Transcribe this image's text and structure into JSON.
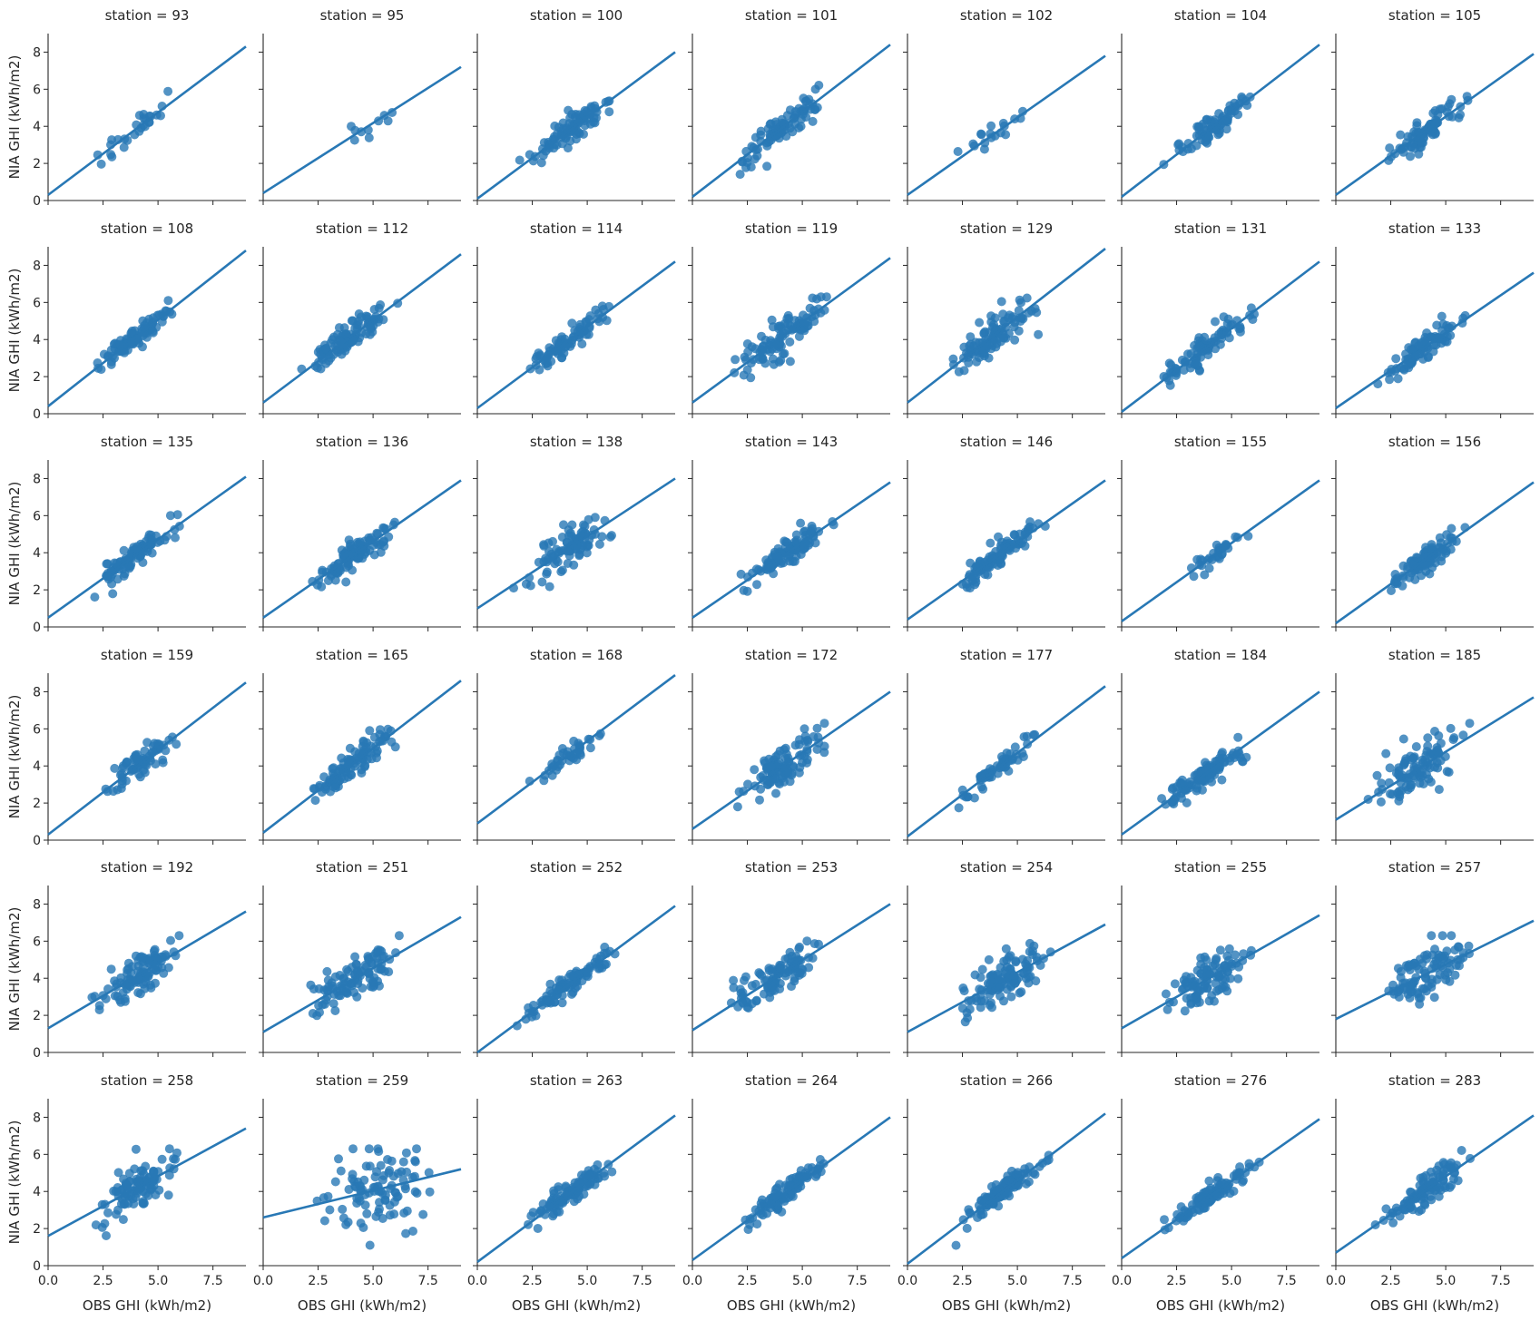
{
  "figure": {
    "type": "scatter",
    "xlabel": "OBS GHI (kWh/m2)",
    "ylabel": "NIA GHI (kWh/m2)",
    "xlim": [
      0,
      9
    ],
    "ylim": [
      0,
      9
    ],
    "xticks": [
      "0.0",
      "2.5",
      "5.0",
      "7.5"
    ],
    "yticks": [
      "0",
      "2",
      "4",
      "6",
      "8"
    ],
    "point_color": "#2878b5",
    "line_color": "#2878b5",
    "rows": 6,
    "cols": 7
  },
  "chart_data": [
    {
      "title": "station = 93",
      "reg": {
        "x": [
          0,
          9
        ],
        "y": [
          0.3,
          8.3
        ]
      },
      "n": 28,
      "sx": [
        1.7,
        6.6
      ],
      "noise": 0.35
    },
    {
      "title": "station = 95",
      "reg": {
        "x": [
          0,
          9
        ],
        "y": [
          0.4,
          7.2
        ]
      },
      "n": 10,
      "sx": [
        2.5,
        6.5
      ],
      "noise": 0.25
    },
    {
      "title": "station = 100",
      "reg": {
        "x": [
          0,
          9
        ],
        "y": [
          0.1,
          8.0
        ]
      },
      "n": 90,
      "sx": [
        1.8,
        6.6
      ],
      "noise": 0.35
    },
    {
      "title": "station = 101",
      "reg": {
        "x": [
          0,
          9
        ],
        "y": [
          0.2,
          8.4
        ]
      },
      "n": 90,
      "sx": [
        1.4,
        6.6
      ],
      "noise": 0.4
    },
    {
      "title": "station = 102",
      "reg": {
        "x": [
          0,
          9
        ],
        "y": [
          0.3,
          7.8
        ]
      },
      "n": 18,
      "sx": [
        1.6,
        6.6
      ],
      "noise": 0.2
    },
    {
      "title": "station = 104",
      "reg": {
        "x": [
          0,
          9
        ],
        "y": [
          0.2,
          8.4
        ]
      },
      "n": 80,
      "sx": [
        1.5,
        6.5
      ],
      "noise": 0.35
    },
    {
      "title": "station = 105",
      "reg": {
        "x": [
          0,
          9
        ],
        "y": [
          0.3,
          7.9
        ]
      },
      "n": 80,
      "sx": [
        1.8,
        6.5
      ],
      "noise": 0.35
    },
    {
      "title": "station = 108",
      "reg": {
        "x": [
          0,
          9
        ],
        "y": [
          0.4,
          8.8
        ]
      },
      "n": 90,
      "sx": [
        1.4,
        6.6
      ],
      "noise": 0.3
    },
    {
      "title": "station = 112",
      "reg": {
        "x": [
          0,
          9
        ],
        "y": [
          0.6,
          8.6
        ]
      },
      "n": 100,
      "sx": [
        1.4,
        6.5
      ],
      "noise": 0.4
    },
    {
      "title": "station = 114",
      "reg": {
        "x": [
          0,
          9
        ],
        "y": [
          0.3,
          8.2
        ]
      },
      "n": 80,
      "sx": [
        1.6,
        6.5
      ],
      "noise": 0.3
    },
    {
      "title": "station = 119",
      "reg": {
        "x": [
          0,
          9
        ],
        "y": [
          0.6,
          8.4
        ]
      },
      "n": 100,
      "sx": [
        1.4,
        6.6
      ],
      "noise": 0.5
    },
    {
      "title": "station = 129",
      "reg": {
        "x": [
          0,
          9
        ],
        "y": [
          0.6,
          8.9
        ]
      },
      "n": 100,
      "sx": [
        1.1,
        6.9
      ],
      "noise": 0.5
    },
    {
      "title": "station = 131",
      "reg": {
        "x": [
          0,
          9
        ],
        "y": [
          0.1,
          8.2
        ]
      },
      "n": 90,
      "sx": [
        1.3,
        6.6
      ],
      "noise": 0.35
    },
    {
      "title": "station = 133",
      "reg": {
        "x": [
          0,
          9
        ],
        "y": [
          0.3,
          7.6
        ]
      },
      "n": 90,
      "sx": [
        1.5,
        6.5
      ],
      "noise": 0.35
    },
    {
      "title": "station = 135",
      "reg": {
        "x": [
          0,
          9
        ],
        "y": [
          0.5,
          8.1
        ]
      },
      "n": 90,
      "sx": [
        1.6,
        6.6
      ],
      "noise": 0.35
    },
    {
      "title": "station = 136",
      "reg": {
        "x": [
          0,
          9
        ],
        "y": [
          0.5,
          7.9
        ]
      },
      "n": 100,
      "sx": [
        1.7,
        6.6
      ],
      "noise": 0.35
    },
    {
      "title": "station = 138",
      "reg": {
        "x": [
          0,
          9
        ],
        "y": [
          1.0,
          8.0
        ]
      },
      "n": 90,
      "sx": [
        1.3,
        6.6
      ],
      "noise": 0.55
    },
    {
      "title": "station = 143",
      "reg": {
        "x": [
          0,
          9
        ],
        "y": [
          0.5,
          7.8
        ]
      },
      "n": 100,
      "sx": [
        1.8,
        6.6
      ],
      "noise": 0.35
    },
    {
      "title": "station = 146",
      "reg": {
        "x": [
          0,
          9
        ],
        "y": [
          0.4,
          7.9
        ]
      },
      "n": 100,
      "sx": [
        1.6,
        6.5
      ],
      "noise": 0.35
    },
    {
      "title": "station = 155",
      "reg": {
        "x": [
          0,
          9
        ],
        "y": [
          0.3,
          7.9
        ]
      },
      "n": 30,
      "sx": [
        2.3,
        6.3
      ],
      "noise": 0.25
    },
    {
      "title": "station = 156",
      "reg": {
        "x": [
          0,
          9
        ],
        "y": [
          0.2,
          7.8
        ]
      },
      "n": 90,
      "sx": [
        1.8,
        6.6
      ],
      "noise": 0.35
    },
    {
      "title": "station = 159",
      "reg": {
        "x": [
          0,
          9
        ],
        "y": [
          0.3,
          8.5
        ]
      },
      "n": 70,
      "sx": [
        2.0,
        6.6
      ],
      "noise": 0.35
    },
    {
      "title": "station = 165",
      "reg": {
        "x": [
          0,
          9
        ],
        "y": [
          0.4,
          8.6
        ]
      },
      "n": 100,
      "sx": [
        1.6,
        6.5
      ],
      "noise": 0.4
    },
    {
      "title": "station = 168",
      "reg": {
        "x": [
          0,
          9
        ],
        "y": [
          0.9,
          8.9
        ]
      },
      "n": 40,
      "sx": [
        2.0,
        6.0
      ],
      "noise": 0.3
    },
    {
      "title": "station = 172",
      "reg": {
        "x": [
          0,
          9
        ],
        "y": [
          0.6,
          8.0
        ]
      },
      "n": 100,
      "sx": [
        1.5,
        6.6
      ],
      "noise": 0.6
    },
    {
      "title": "station = 177",
      "reg": {
        "x": [
          0,
          9
        ],
        "y": [
          0.2,
          8.3
        ]
      },
      "n": 60,
      "sx": [
        1.9,
        6.6
      ],
      "noise": 0.25
    },
    {
      "title": "station = 184",
      "reg": {
        "x": [
          0,
          9
        ],
        "y": [
          0.3,
          8.0
        ]
      },
      "n": 110,
      "sx": [
        1.1,
        6.6
      ],
      "noise": 0.35
    },
    {
      "title": "station = 185",
      "reg": {
        "x": [
          0,
          9
        ],
        "y": [
          1.1,
          7.7
        ]
      },
      "n": 100,
      "sx": [
        0.9,
        6.6
      ],
      "noise": 0.7
    },
    {
      "title": "station = 192",
      "reg": {
        "x": [
          0,
          9
        ],
        "y": [
          1.3,
          7.6
        ]
      },
      "n": 100,
      "sx": [
        1.7,
        6.6
      ],
      "noise": 0.55
    },
    {
      "title": "station = 251",
      "reg": {
        "x": [
          0,
          9
        ],
        "y": [
          1.1,
          7.3
        ]
      },
      "n": 100,
      "sx": [
        1.6,
        6.6
      ],
      "noise": 0.6
    },
    {
      "title": "station = 252",
      "reg": {
        "x": [
          0,
          9
        ],
        "y": [
          0.0,
          7.9
        ]
      },
      "n": 100,
      "sx": [
        1.7,
        6.6
      ],
      "noise": 0.3
    },
    {
      "title": "station = 253",
      "reg": {
        "x": [
          0,
          9
        ],
        "y": [
          1.2,
          8.0
        ]
      },
      "n": 100,
      "sx": [
        1.4,
        6.5
      ],
      "noise": 0.55
    },
    {
      "title": "station = 254",
      "reg": {
        "x": [
          0,
          9
        ],
        "y": [
          1.1,
          6.9
        ]
      },
      "n": 110,
      "sx": [
        1.6,
        6.9
      ],
      "noise": 0.6
    },
    {
      "title": "station = 255",
      "reg": {
        "x": [
          0,
          9
        ],
        "y": [
          1.3,
          7.4
        ]
      },
      "n": 100,
      "sx": [
        1.5,
        6.4
      ],
      "noise": 0.6
    },
    {
      "title": "station = 257",
      "reg": {
        "x": [
          0,
          9
        ],
        "y": [
          1.8,
          7.1
        ]
      },
      "n": 100,
      "sx": [
        1.6,
        6.6
      ],
      "noise": 0.7
    },
    {
      "title": "station = 258",
      "reg": {
        "x": [
          0,
          9
        ],
        "y": [
          1.6,
          7.4
        ]
      },
      "n": 100,
      "sx": [
        1.6,
        6.6
      ],
      "noise": 0.65
    },
    {
      "title": "station = 259",
      "reg": {
        "x": [
          0,
          9
        ],
        "y": [
          2.6,
          5.2
        ]
      },
      "n": 100,
      "sx": [
        1.7,
        8.7
      ],
      "noise": 1.1
    },
    {
      "title": "station = 263",
      "reg": {
        "x": [
          0,
          9
        ],
        "y": [
          0.2,
          8.1
        ]
      },
      "n": 100,
      "sx": [
        1.7,
        6.6
      ],
      "noise": 0.3
    },
    {
      "title": "station = 264",
      "reg": {
        "x": [
          0,
          9
        ],
        "y": [
          0.3,
          8.0
        ]
      },
      "n": 100,
      "sx": [
        1.7,
        6.8
      ],
      "noise": 0.3
    },
    {
      "title": "station = 266",
      "reg": {
        "x": [
          0,
          9
        ],
        "y": [
          0.1,
          8.2
        ]
      },
      "n": 110,
      "sx": [
        1.9,
        6.8
      ],
      "noise": 0.3
    },
    {
      "title": "station = 276",
      "reg": {
        "x": [
          0,
          9
        ],
        "y": [
          0.4,
          7.9
        ]
      },
      "n": 100,
      "sx": [
        1.4,
        6.6
      ],
      "noise": 0.3
    },
    {
      "title": "station = 283",
      "reg": {
        "x": [
          0,
          9
        ],
        "y": [
          0.7,
          8.1
        ]
      },
      "n": 100,
      "sx": [
        1.5,
        6.6
      ],
      "noise": 0.4
    }
  ]
}
